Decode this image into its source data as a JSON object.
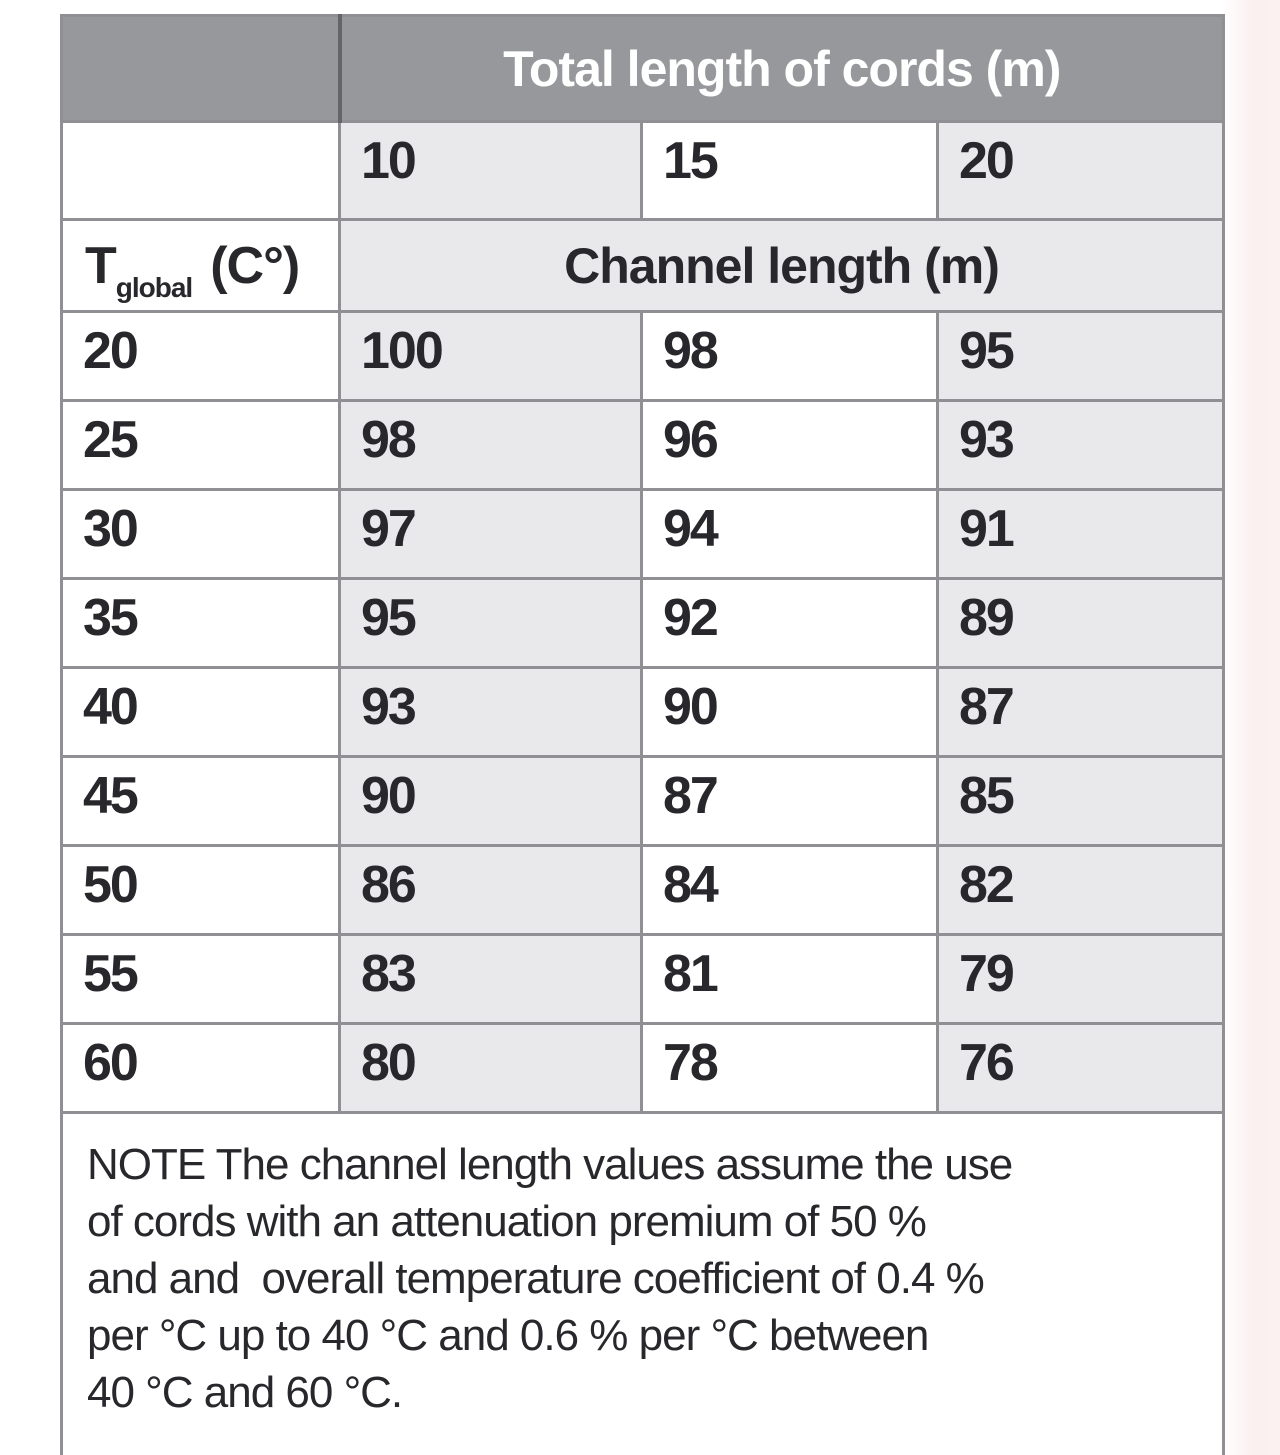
{
  "colors": {
    "header_bg": "#97989c",
    "header_text": "#ffffff",
    "shaded_cell_bg": "#e9e9eb",
    "cell_text": "#27272c",
    "grid_line": "#8f8f94",
    "page_margin_tint": "#faf0ef"
  },
  "table": {
    "title": "Total length of cords (m)",
    "cord_lengths": [
      "10",
      "15",
      "20"
    ],
    "temp_header": {
      "symbol": "T",
      "subscript": "global",
      "unit": "(C°)"
    },
    "channel_header": "Channel length (m)",
    "rows": [
      {
        "temp": "20",
        "values": [
          "100",
          "98",
          "95"
        ]
      },
      {
        "temp": "25",
        "values": [
          "98",
          "96",
          "93"
        ]
      },
      {
        "temp": "30",
        "values": [
          "97",
          "94",
          "91"
        ]
      },
      {
        "temp": "35",
        "values": [
          "95",
          "92",
          "89"
        ]
      },
      {
        "temp": "40",
        "values": [
          "93",
          "90",
          "87"
        ]
      },
      {
        "temp": "45",
        "values": [
          "90",
          "87",
          "85"
        ]
      },
      {
        "temp": "50",
        "values": [
          "86",
          "84",
          "82"
        ]
      },
      {
        "temp": "55",
        "values": [
          "83",
          "81",
          "79"
        ]
      },
      {
        "temp": "60",
        "values": [
          "80",
          "78",
          "76"
        ]
      }
    ],
    "note_lines": [
      "NOTE The channel length values assume the use",
      "of cords with an attenuation premium of 50 %",
      "and and  overall temperature coefficient of 0.4 %",
      "per °C up to 40 °C and 0.6 % per °C between",
      "40 °C and 60 °C."
    ]
  }
}
